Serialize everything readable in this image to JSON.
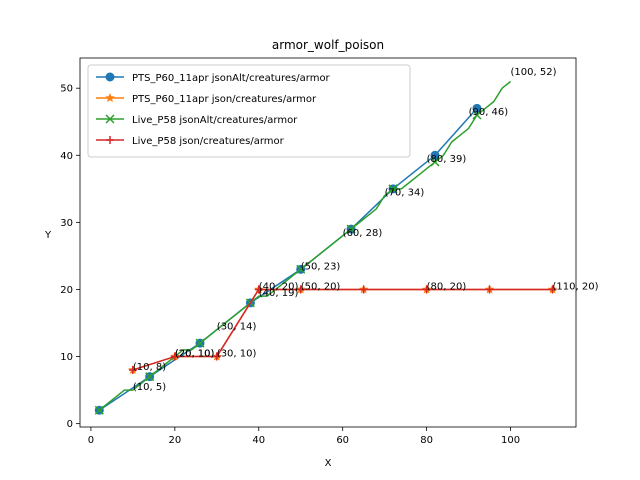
{
  "chart_data": {
    "type": "line",
    "title": "armor_wolf_poison",
    "xlabel": "X",
    "ylabel": "Y",
    "xlim": [
      -2.6,
      115.6
    ],
    "ylim": [
      -0.5,
      54.5
    ],
    "xticks": [
      0,
      20,
      40,
      60,
      80,
      100
    ],
    "yticks": [
      0,
      10,
      20,
      30,
      40,
      50
    ],
    "grid": false,
    "legend_position": "upper left",
    "series": [
      {
        "name": "PTS_P60_11apr jsonAlt/creatures/armor",
        "color": "#1f77b4",
        "marker": "circle",
        "x": [
          2,
          14,
          26,
          38,
          50,
          62,
          72,
          82,
          92
        ],
        "y": [
          2,
          7,
          12,
          18,
          23,
          29,
          35,
          40,
          47
        ]
      },
      {
        "name": "PTS_P60_11apr json/creatures/armor",
        "color": "#ff7f0e",
        "marker": "star",
        "x": [
          10,
          20,
          30,
          40,
          50,
          65,
          80,
          95,
          110
        ],
        "y": [
          8,
          10,
          10,
          20,
          20,
          20,
          20,
          20,
          20
        ]
      },
      {
        "name": "Live_P58 jsonAlt/creatures/armor",
        "color": "#2ca02c",
        "marker": "x",
        "x": [
          2,
          4,
          6,
          8,
          10,
          12,
          14,
          16,
          18,
          20,
          22,
          24,
          26,
          28,
          30,
          32,
          34,
          36,
          38,
          40,
          42,
          44,
          46,
          48,
          50,
          52,
          54,
          56,
          58,
          60,
          62,
          64,
          66,
          68,
          70,
          72,
          74,
          76,
          78,
          80,
          82,
          84,
          86,
          88,
          90,
          92,
          94,
          96,
          98,
          100
        ],
        "y": [
          2,
          3,
          4,
          5,
          5,
          6,
          7,
          8,
          9,
          10,
          11,
          11,
          12,
          13,
          14,
          15,
          16,
          17,
          18,
          19,
          19,
          20,
          21,
          22,
          23,
          24,
          25,
          26,
          27,
          28,
          29,
          30,
          31,
          32,
          34,
          35,
          35,
          36,
          37,
          38,
          39,
          40,
          42,
          43,
          44,
          46,
          47,
          48,
          50,
          51
        ],
        "markers_at": [
          2,
          14,
          26,
          38,
          50,
          62,
          72,
          82,
          92
        ]
      },
      {
        "name": "Live_P58 json/creatures/armor",
        "color": "#d62728",
        "marker": "plus",
        "x": [
          10,
          20,
          30,
          40,
          50,
          65,
          80,
          95,
          110
        ],
        "y": [
          8,
          10,
          10,
          20,
          20,
          20,
          20,
          20,
          20
        ]
      }
    ],
    "annotations": [
      {
        "text": "(10, 5)",
        "x": 10,
        "y": 5
      },
      {
        "text": "(10, 8)",
        "x": 10,
        "y": 8
      },
      {
        "text": "(20, 10)",
        "x": 20,
        "y": 10
      },
      {
        "text": "(20, 10)",
        "x": 20,
        "y": 10
      },
      {
        "text": "(30, 10)",
        "x": 30,
        "y": 10
      },
      {
        "text": "(30, 14)",
        "x": 30,
        "y": 14
      },
      {
        "text": "(40, 19)",
        "x": 40,
        "y": 19
      },
      {
        "text": "(40, 20)",
        "x": 40,
        "y": 20
      },
      {
        "text": "(50, 20)",
        "x": 50,
        "y": 20
      },
      {
        "text": "(50, 23)",
        "x": 50,
        "y": 23
      },
      {
        "text": "(60, 28)",
        "x": 60,
        "y": 28
      },
      {
        "text": "(70, 34)",
        "x": 70,
        "y": 34
      },
      {
        "text": "(80, 39)",
        "x": 80,
        "y": 39
      },
      {
        "text": "(80, 20)",
        "x": 80,
        "y": 20
      },
      {
        "text": "(90, 46)",
        "x": 90,
        "y": 46
      },
      {
        "text": "(100, 52)",
        "x": 100,
        "y": 52
      },
      {
        "text": "(110, 20)",
        "x": 110,
        "y": 20
      }
    ]
  }
}
